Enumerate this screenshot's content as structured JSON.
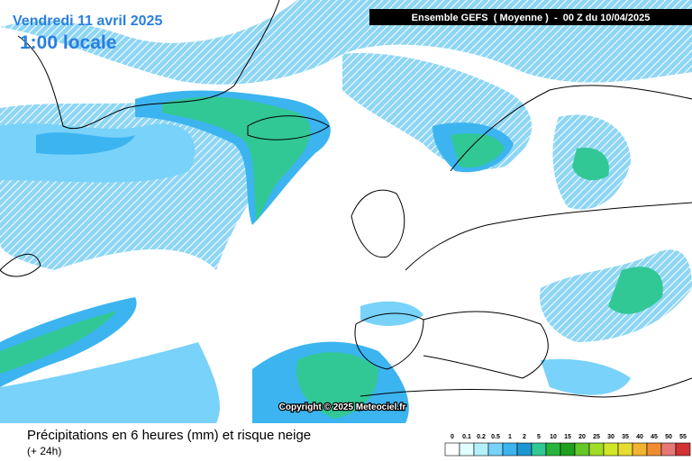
{
  "header": {
    "date": "Vendredi 11 avril 2025",
    "local_time": "1:00 locale",
    "run": "Ensemble GEFS  ( Moyenne )  -  00 Z du 10/04/2025"
  },
  "copyright": "Copyright © 2025 Meteociel.fr",
  "legend": {
    "title": "Précipitations en 6 heures (mm) et risque neige",
    "subtitle": "(+ 24h)",
    "scale": [
      0,
      0.1,
      0.2,
      0.5,
      1,
      2,
      5,
      10,
      15,
      20,
      25,
      30,
      35,
      40,
      45,
      50,
      55
    ],
    "colors": [
      "#ffffff",
      "#e1ffff",
      "#b4f0fa",
      "#78d2fa",
      "#3cb4f0",
      "#1e96d2",
      "#32c896",
      "#28b43c",
      "#1ea01e",
      "#64c828",
      "#a0dc28",
      "#d2e628",
      "#e6dc32",
      "#f0b432",
      "#f08c32",
      "#e67878",
      "#d23232"
    ]
  }
}
